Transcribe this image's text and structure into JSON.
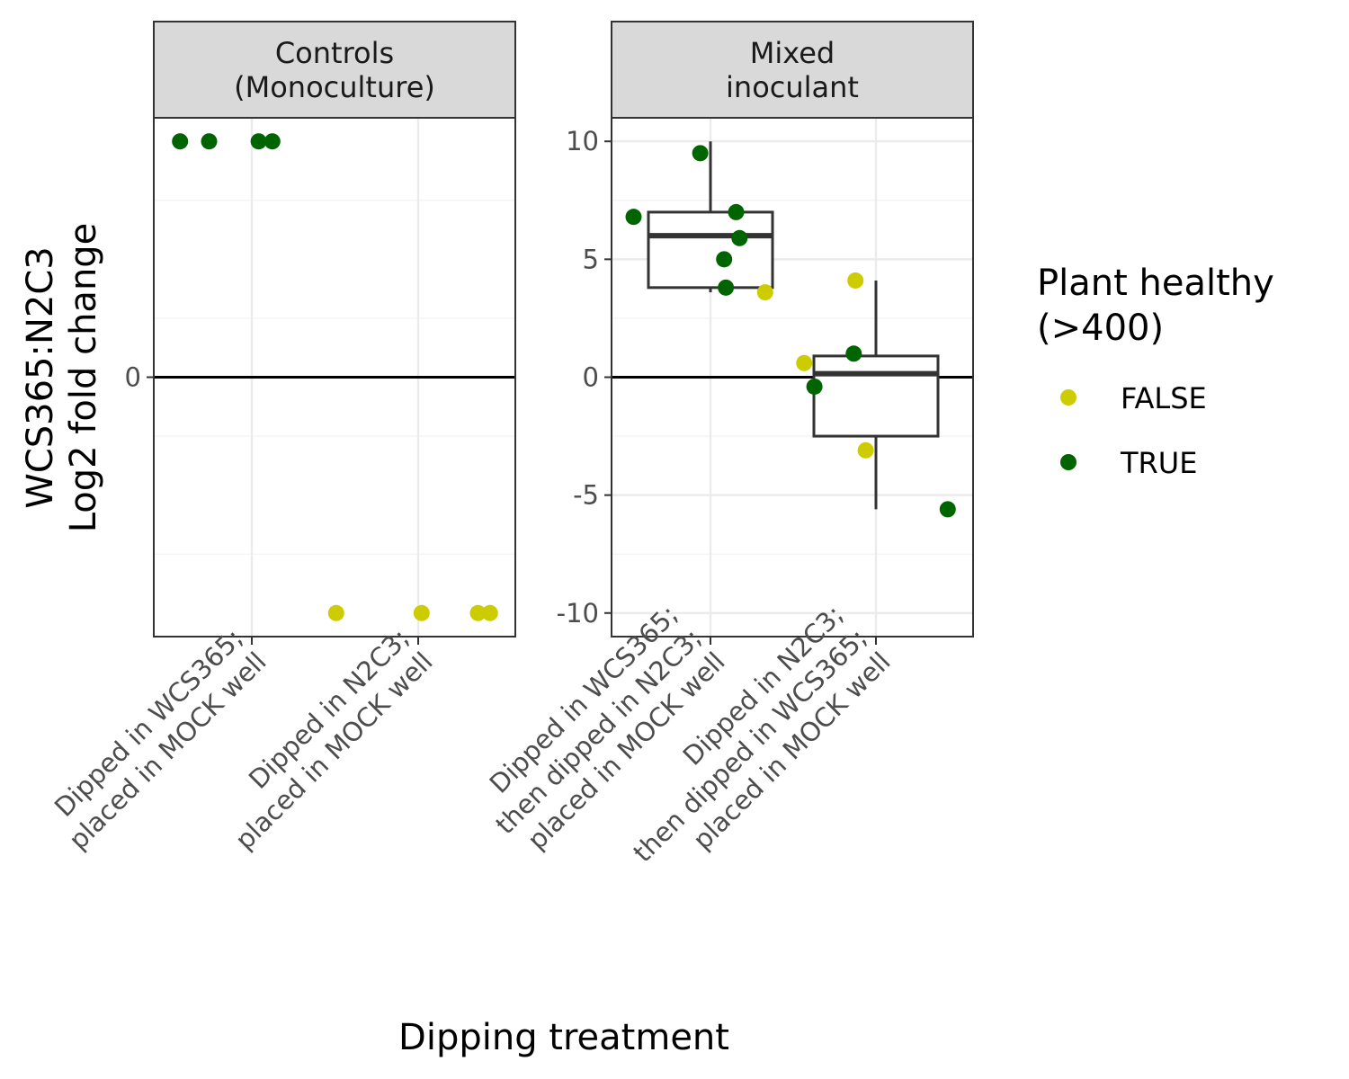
{
  "chart_data": {
    "type": "scatter",
    "xlabel": "Dipping treatment",
    "ylabel": [
      "WCS365:N2C3",
      "Log2 fold change"
    ],
    "legend": {
      "title": [
        "Plant healthy",
        "(>400)"
      ],
      "position": "right",
      "entries": [
        {
          "label": "FALSE",
          "color": "#CCCC00"
        },
        {
          "label": "TRUE",
          "color": "#006400"
        }
      ]
    },
    "panels": [
      {
        "strip": [
          "Controls",
          "(Monoculture)"
        ],
        "ylim": [
          -11,
          11
        ],
        "y_tick_labels": [
          {
            "value": 0,
            "label": "0"
          }
        ],
        "hline": 0,
        "grid": true,
        "categories": [
          {
            "label": [
              "Dipped in WCS365;",
              "placed in MOCK well"
            ]
          },
          {
            "label": [
              "Dipped in N2C3;",
              "placed in MOCK well"
            ]
          }
        ],
        "points": [
          {
            "x": 1,
            "jitter": -0.42,
            "y": 10,
            "healthy": "TRUE"
          },
          {
            "x": 1,
            "jitter": -0.25,
            "y": 10,
            "healthy": "TRUE"
          },
          {
            "x": 1,
            "jitter": 0.04,
            "y": 10,
            "healthy": "TRUE"
          },
          {
            "x": 1,
            "jitter": 0.12,
            "y": 10,
            "healthy": "TRUE"
          },
          {
            "x": 2,
            "jitter": -0.48,
            "y": -10,
            "healthy": "FALSE"
          },
          {
            "x": 2,
            "jitter": 0.02,
            "y": -10,
            "healthy": "FALSE"
          },
          {
            "x": 2,
            "jitter": 0.35,
            "y": -10,
            "healthy": "FALSE"
          },
          {
            "x": 2,
            "jitter": 0.42,
            "y": -10,
            "healthy": "FALSE"
          }
        ],
        "boxplots": []
      },
      {
        "strip": [
          "Mixed",
          "inoculant"
        ],
        "ylim": [
          -11,
          11
        ],
        "y_tick_labels": [
          {
            "value": 10,
            "label": "10"
          },
          {
            "value": 5,
            "label": "5"
          },
          {
            "value": 0,
            "label": "0"
          },
          {
            "value": -5,
            "label": "-5"
          },
          {
            "value": -10,
            "label": "-10"
          }
        ],
        "hline": 0,
        "grid": true,
        "categories": [
          {
            "label": [
              "Dipped in WCS365;",
              "then dipped in N2C3;",
              "placed in MOCK well"
            ]
          },
          {
            "label": [
              "Dipped in N2C3;",
              "then dipped in WCS365;",
              "placed in MOCK well"
            ]
          }
        ],
        "points": [
          {
            "x": 1,
            "jitter": -0.45,
            "y": 6.8,
            "healthy": "TRUE"
          },
          {
            "x": 1,
            "jitter": -0.06,
            "y": 9.5,
            "healthy": "TRUE"
          },
          {
            "x": 1,
            "jitter": 0.15,
            "y": 7.0,
            "healthy": "TRUE"
          },
          {
            "x": 1,
            "jitter": 0.17,
            "y": 5.9,
            "healthy": "TRUE"
          },
          {
            "x": 1,
            "jitter": 0.08,
            "y": 5.0,
            "healthy": "TRUE"
          },
          {
            "x": 1,
            "jitter": 0.09,
            "y": 3.8,
            "healthy": "TRUE"
          },
          {
            "x": 1,
            "jitter": 0.32,
            "y": 3.6,
            "healthy": "FALSE"
          },
          {
            "x": 2,
            "jitter": -0.12,
            "y": 4.1,
            "healthy": "FALSE"
          },
          {
            "x": 2,
            "jitter": -0.42,
            "y": 0.6,
            "healthy": "FALSE"
          },
          {
            "x": 2,
            "jitter": -0.36,
            "y": -0.4,
            "healthy": "TRUE"
          },
          {
            "x": 2,
            "jitter": -0.13,
            "y": 1.0,
            "healthy": "TRUE"
          },
          {
            "x": 2,
            "jitter": -0.06,
            "y": -3.1,
            "healthy": "FALSE"
          },
          {
            "x": 2,
            "jitter": 0.42,
            "y": -5.6,
            "healthy": "TRUE"
          }
        ],
        "boxplots": [
          {
            "x": 1,
            "whisker_low": 3.6,
            "q1": 3.8,
            "median": 6.0,
            "q3": 7.0,
            "whisker_high": 10.0
          },
          {
            "x": 2,
            "whisker_low": -5.6,
            "q1": -2.5,
            "median": 0.15,
            "q3": 0.9,
            "whisker_high": 4.1
          }
        ]
      }
    ]
  }
}
